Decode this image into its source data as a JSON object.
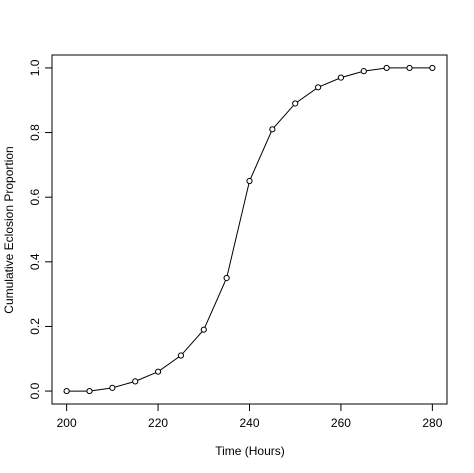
{
  "chart_data": {
    "type": "line",
    "x_label": "Time (Hours)",
    "y_label": "Cumulative Eclosion Proportion",
    "x": [
      200,
      205,
      210,
      215,
      220,
      225,
      230,
      235,
      240,
      245,
      250,
      255,
      260,
      265,
      270,
      275,
      280
    ],
    "values": [
      0.0,
      0.0,
      0.01,
      0.03,
      0.06,
      0.11,
      0.19,
      0.35,
      0.65,
      0.81,
      0.89,
      0.94,
      0.97,
      0.99,
      1.0,
      1.0,
      1.0
    ],
    "color": "#000000",
    "markers": true,
    "xlim": [
      196.8,
      283.2
    ],
    "ylim": [
      -0.04,
      1.04
    ],
    "xticks": [
      200,
      220,
      240,
      260,
      280
    ],
    "yticks": [
      {
        "value": 0,
        "label": "0.0"
      },
      0.2,
      0.4,
      0.6,
      0.8,
      {
        "value": 1,
        "label": "1.0"
      }
    ]
  }
}
